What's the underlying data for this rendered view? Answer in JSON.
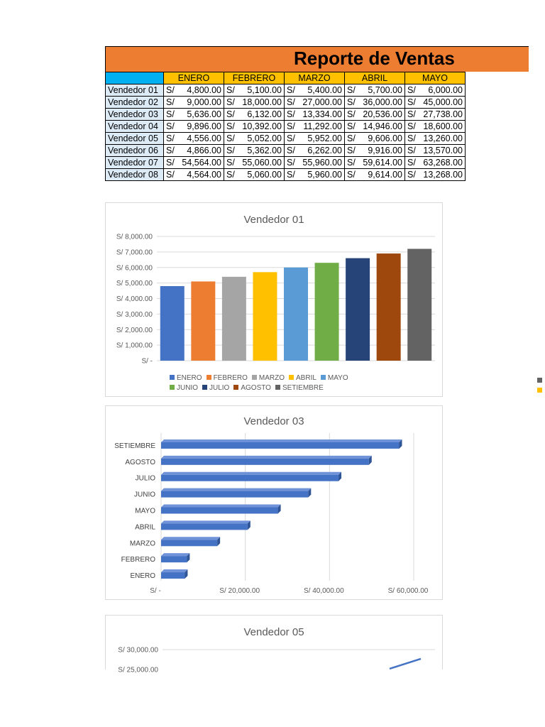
{
  "report": {
    "title": "Reporte de Ventas",
    "months": [
      "ENERO",
      "FEBRERO",
      "MARZO",
      "ABRIL",
      "MAYO"
    ],
    "currency": "S/",
    "rows": [
      {
        "name": "Vendedor 01",
        "values": [
          "4,800.00",
          "5,100.00",
          "5,400.00",
          "5,700.00",
          "6,000.00"
        ]
      },
      {
        "name": "Vendedor 02",
        "values": [
          "9,000.00",
          "18,000.00",
          "27,000.00",
          "36,000.00",
          "45,000.00"
        ]
      },
      {
        "name": "Vendedor 03",
        "values": [
          "5,636.00",
          "6,132.00",
          "13,334.00",
          "20,536.00",
          "27,738.00"
        ]
      },
      {
        "name": "Vendedor 04",
        "values": [
          "9,896.00",
          "10,392.00",
          "11,292.00",
          "14,946.00",
          "18,600.00"
        ]
      },
      {
        "name": "Vendedor 05",
        "values": [
          "4,556.00",
          "5,052.00",
          "5,952.00",
          "9,606.00",
          "13,260.00"
        ]
      },
      {
        "name": "Vendedor 06",
        "values": [
          "4,866.00",
          "5,362.00",
          "6,262.00",
          "9,916.00",
          "13,570.00"
        ]
      },
      {
        "name": "Vendedor 07",
        "values": [
          "54,564.00",
          "55,060.00",
          "55,960.00",
          "59,614.00",
          "63,268.00"
        ]
      },
      {
        "name": "Vendedor 08",
        "values": [
          "4,564.00",
          "5,060.00",
          "5,960.00",
          "9,614.00",
          "13,268.00"
        ]
      }
    ],
    "colors": {
      "banner": "#ED7D31",
      "header": "#FFC000",
      "corner": "#00B0F0",
      "vendor_cell": "#DDEBF7"
    }
  },
  "chart_data": [
    {
      "type": "bar",
      "title": "Vendedor 01",
      "categories": [
        "ENERO",
        "FEBRERO",
        "MARZO",
        "ABRIL",
        "MAYO",
        "JUNIO",
        "JULIO",
        "AGOSTO",
        "SETIEMBRE"
      ],
      "values": [
        4800,
        5100,
        5400,
        5700,
        6000,
        6300,
        6600,
        6900,
        7200
      ],
      "colors": [
        "#4472C4",
        "#ED7D31",
        "#A5A5A5",
        "#FFC000",
        "#5B9BD5",
        "#70AD47",
        "#264478",
        "#9E480E",
        "#636363"
      ],
      "ylim": [
        0,
        8000
      ],
      "yticks": [
        "S/ -",
        "S/ 1,000.00",
        "S/ 2,000.00",
        "S/ 3,000.00",
        "S/ 4,000.00",
        "S/ 5,000.00",
        "S/ 6,000.00",
        "S/ 7,000.00",
        "S/ 8,000.00"
      ],
      "legend": "bottom",
      "grid": true
    },
    {
      "type": "bar",
      "orientation": "horizontal",
      "title": "Vendedor 03",
      "categories": [
        "ENERO",
        "FEBRERO",
        "MARZO",
        "ABRIL",
        "MAYO",
        "JUNIO",
        "JULIO",
        "AGOSTO",
        "SETIEMBRE"
      ],
      "values": [
        5636,
        6132,
        13334,
        20536,
        27738,
        34940,
        42142,
        49344,
        56546
      ],
      "color": "#4472C4",
      "xlim": [
        0,
        60000
      ],
      "xticks": [
        "S/ -",
        "S/ 20,000.00",
        "S/ 40,000.00",
        "S/ 60,000.00"
      ],
      "grid": true
    },
    {
      "type": "line",
      "title": "Vendedor 05",
      "ylim": [
        25000,
        30000
      ],
      "yticks": [
        "S/ 25,000.00",
        "S/ 30,000.00"
      ],
      "values_visible_partial": [
        25200,
        27700
      ],
      "color": "#4472C4"
    }
  ]
}
